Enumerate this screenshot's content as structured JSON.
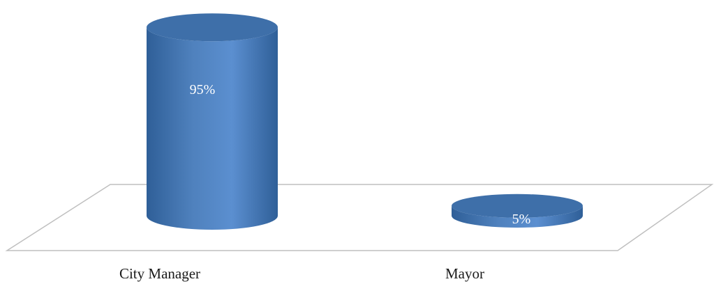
{
  "chart_data": {
    "type": "bar",
    "style": "3d-cylinder",
    "categories": [
      "City Manager",
      "Mayor"
    ],
    "values": [
      95,
      5
    ],
    "data_labels": [
      "95%",
      "5%"
    ],
    "title": "",
    "xlabel": "",
    "ylabel": "",
    "ylim": [
      0,
      100
    ],
    "grid": false,
    "legend": "none",
    "colors": {
      "bar": "#4f81bd",
      "bar_light": "#5b8fd0",
      "bar_dark": "#2f5f98",
      "top": "#3e6fa9",
      "floor_stroke": "#bfbfbf"
    }
  }
}
